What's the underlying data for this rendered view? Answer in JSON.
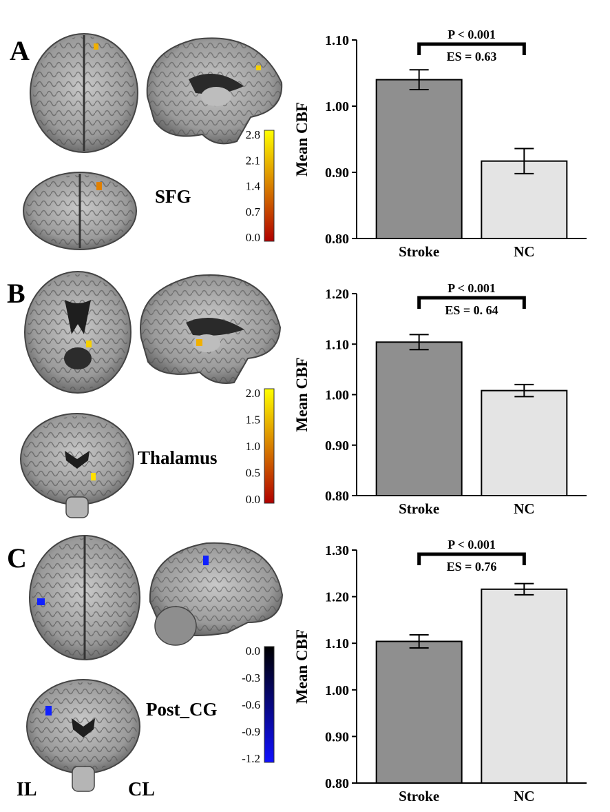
{
  "panels": [
    {
      "letter": "A",
      "region": "SFG",
      "colorbar": {
        "ticks": [
          "2.8",
          "2.1",
          "1.4",
          "0.7",
          "0.0"
        ],
        "colors": [
          "#ffff00",
          "#b00000"
        ]
      }
    },
    {
      "letter": "B",
      "region": "Thalamus",
      "colorbar": {
        "ticks": [
          "2.0",
          "1.5",
          "1.0",
          "0.5",
          "0.0"
        ],
        "colors": [
          "#ffff00",
          "#b00000"
        ]
      }
    },
    {
      "letter": "C",
      "region": "Post_CG",
      "colorbar": {
        "ticks": [
          "0.0",
          "-0.3",
          "-0.6",
          "-0.9",
          "-1.2"
        ],
        "colors": [
          "#000000",
          "#1010ff"
        ]
      }
    }
  ],
  "side_labels": {
    "left": "IL",
    "right": "CL"
  },
  "chart_data": [
    {
      "type": "bar",
      "ylabel": "Mean CBF",
      "categories": [
        "Stroke",
        "NC"
      ],
      "values": [
        1.04,
        0.917
      ],
      "errors": [
        0.015,
        0.019
      ],
      "ylim": [
        0.8,
        1.1
      ],
      "yticks": [
        "0.80",
        "0.90",
        "1.00",
        "1.10"
      ],
      "annotation": {
        "p": "P < 0.001",
        "es": "ES = 0.63"
      },
      "bar_colors": [
        "#8f8f8f",
        "#e4e4e4"
      ]
    },
    {
      "type": "bar",
      "ylabel": "Mean CBF",
      "categories": [
        "Stroke",
        "NC"
      ],
      "values": [
        1.104,
        1.008
      ],
      "errors": [
        0.015,
        0.012
      ],
      "ylim": [
        0.8,
        1.2
      ],
      "yticks": [
        "0.80",
        "0.90",
        "1.00",
        "1.10",
        "1.20"
      ],
      "annotation": {
        "p": "P < 0.001",
        "es": "ES = 0. 64"
      },
      "bar_colors": [
        "#8f8f8f",
        "#e4e4e4"
      ]
    },
    {
      "type": "bar",
      "ylabel": "Mean CBF",
      "categories": [
        "Stroke",
        "NC"
      ],
      "values": [
        1.104,
        1.216
      ],
      "errors": [
        0.014,
        0.012
      ],
      "ylim": [
        0.8,
        1.3
      ],
      "yticks": [
        "0.80",
        "0.90",
        "1.00",
        "1.10",
        "1.20",
        "1.30"
      ],
      "annotation": {
        "p": "P < 0.001",
        "es": "ES = 0.76"
      },
      "bar_colors": [
        "#8f8f8f",
        "#e4e4e4"
      ]
    }
  ]
}
